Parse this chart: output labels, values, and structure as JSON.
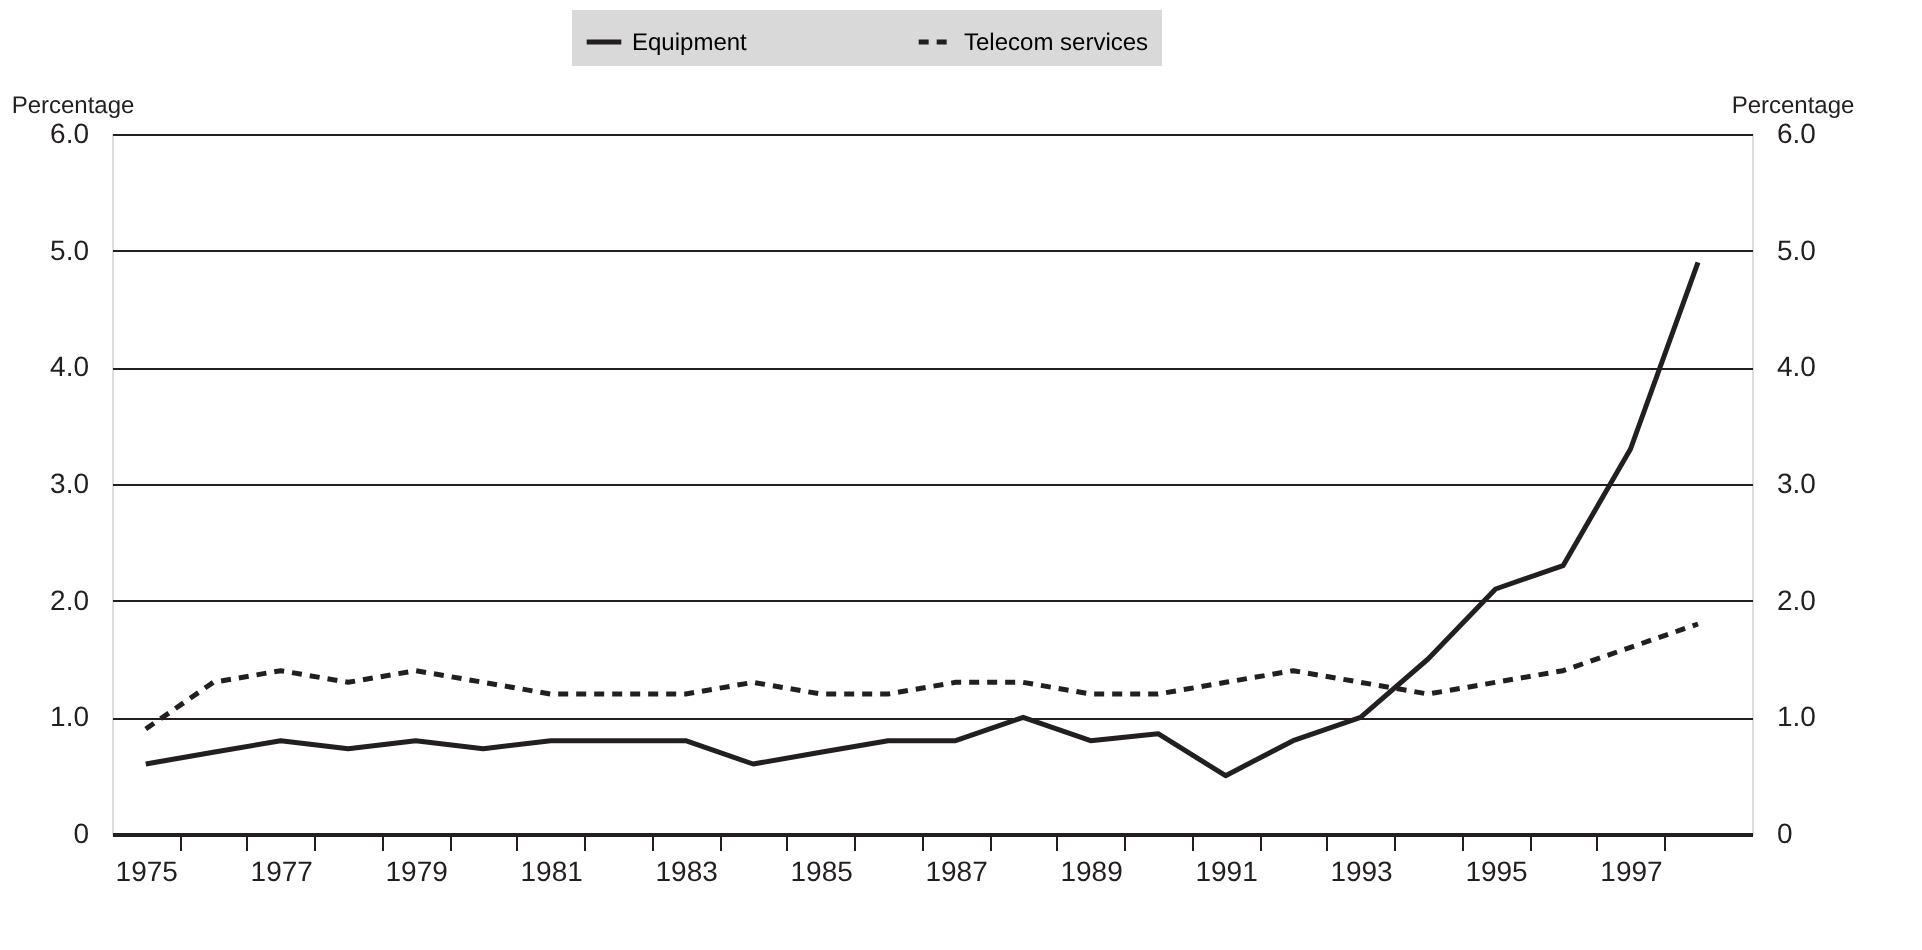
{
  "chart_data": {
    "type": "line",
    "x": [
      1975,
      1976,
      1977,
      1978,
      1979,
      1980,
      1981,
      1982,
      1983,
      1984,
      1985,
      1986,
      1987,
      1988,
      1989,
      1990,
      1991,
      1992,
      1993,
      1994,
      1995,
      1996,
      1997,
      1998
    ],
    "series": [
      {
        "name": "Equipment",
        "color": "#231f20",
        "line_style": "solid",
        "values": [
          0.6,
          0.7,
          0.8,
          0.73,
          0.8,
          0.73,
          0.8,
          0.8,
          0.8,
          0.6,
          0.7,
          0.8,
          0.8,
          1.0,
          0.8,
          0.86,
          0.5,
          0.8,
          1.0,
          1.5,
          2.1,
          2.3,
          3.3,
          4.9
        ]
      },
      {
        "name": "Telecom services",
        "color": "#231f20",
        "line_style": "dashed",
        "values": [
          0.9,
          1.3,
          1.4,
          1.3,
          1.4,
          1.3,
          1.2,
          1.2,
          1.2,
          1.3,
          1.2,
          1.2,
          1.3,
          1.3,
          1.2,
          1.2,
          1.3,
          1.4,
          1.3,
          1.2,
          1.3,
          1.4,
          1.6,
          1.8
        ]
      }
    ],
    "ylabel": "Percentage",
    "y2label": "Percentage",
    "ylim": [
      0,
      6
    ],
    "y2lim": [
      0,
      6
    ],
    "yticks": [
      0,
      {
        "value": 1,
        "label": "1.0"
      },
      {
        "value": 2,
        "label": "2.0"
      },
      {
        "value": 3,
        "label": "3.0"
      },
      {
        "value": 4,
        "label": "4.0"
      },
      {
        "value": 5,
        "label": "5.0"
      },
      {
        "value": 6,
        "label": "6.0"
      }
    ],
    "y2ticks": [
      0,
      {
        "value": 1,
        "label": "1.0"
      },
      {
        "value": 2,
        "label": "2.0"
      },
      {
        "value": 3,
        "label": "3.0"
      },
      {
        "value": 4,
        "label": "4.0"
      },
      {
        "value": 5,
        "label": "5.0"
      },
      {
        "value": 6,
        "label": "6.0"
      }
    ],
    "xlim": [
      1974.5,
      1998.8
    ],
    "xticks": [
      1975,
      {
        "value": 1975.5,
        "label": null
      },
      {
        "value": 1976.5,
        "label": null
      },
      1977,
      {
        "value": 1977.5,
        "label": null
      },
      {
        "value": 1978.5,
        "label": null
      },
      1979,
      {
        "value": 1979.5,
        "label": null
      },
      {
        "value": 1980.5,
        "label": null
      },
      1981,
      {
        "value": 1981.5,
        "label": null
      },
      {
        "value": 1982.5,
        "label": null
      },
      1983,
      {
        "value": 1983.5,
        "label": null
      },
      {
        "value": 1984.5,
        "label": null
      },
      1985,
      {
        "value": 1985.5,
        "label": null
      },
      {
        "value": 1986.5,
        "label": null
      },
      1987,
      {
        "value": 1987.5,
        "label": null
      },
      {
        "value": 1988.5,
        "label": null
      },
      1989,
      {
        "value": 1989.5,
        "label": null
      },
      {
        "value": 1990.5,
        "label": null
      },
      1991,
      {
        "value": 1991.5,
        "label": null
      },
      {
        "value": 1992.5,
        "label": null
      },
      1993,
      {
        "value": 1993.5,
        "label": null
      },
      {
        "value": 1994.5,
        "label": null
      },
      1995,
      {
        "value": 1995.5,
        "label": null
      },
      {
        "value": 1996.5,
        "label": null
      },
      1997,
      {
        "value": 1997.5,
        "label": null
      }
    ],
    "grid": "y",
    "legend": "top"
  }
}
